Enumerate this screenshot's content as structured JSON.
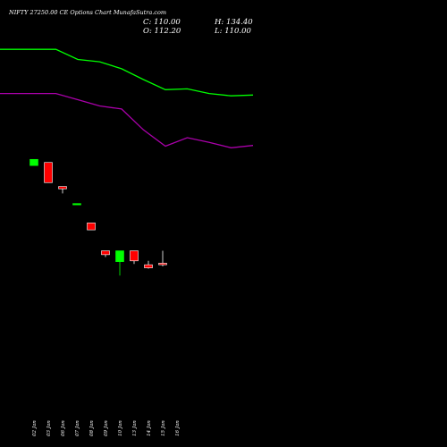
{
  "chart_data": {
    "type": "candlestick",
    "title": "NIFTY 27250.00 CE Options Chart MunafaSutra.com",
    "readout": {
      "close_label": "C: 110.00",
      "high_label": "H: 134.40",
      "open_label": "O: 112.20",
      "low_label": "L: 110.00"
    },
    "x": [
      "02 Jan",
      "03 Jan",
      "06 Jan",
      "07 Jan",
      "08 Jan",
      "09 Jan",
      "10 Jan",
      "13 Jan",
      "14 Jan",
      "15 Jan",
      "16 Jan"
    ],
    "ylim": [
      110,
      560
    ],
    "candles": [
      {
        "open": 404,
        "high": 412,
        "low": 404,
        "close": 412
      },
      {
        "open": 408,
        "high": 408,
        "low": 382,
        "close": 382
      },
      {
        "open": 377,
        "high": 377,
        "low": 368,
        "close": 374
      },
      {
        "open": 355,
        "high": 355,
        "low": 355,
        "close": 355
      },
      {
        "open": 330,
        "high": 330,
        "low": 321,
        "close": 321
      },
      {
        "open": 294,
        "high": 294,
        "low": 286,
        "close": 289
      },
      {
        "open": 280,
        "high": 294,
        "low": 262,
        "close": 294
      },
      {
        "open": 294,
        "high": 294,
        "low": 277,
        "close": 281
      },
      {
        "open": 276,
        "high": 281,
        "low": 271,
        "close": 272
      },
      {
        "open": 278,
        "high": 294,
        "low": 274,
        "close": 276
      },
      {
        "open": null,
        "high": null,
        "low": null,
        "close": null
      }
    ],
    "series": [
      {
        "color": "#00ff00",
        "values": [
          554,
          554,
          541,
          538,
          529,
          515,
          502,
          503,
          497,
          494,
          495
        ]
      },
      {
        "color": "#aa00aa",
        "values": [
          497,
          497,
          489,
          481,
          477,
          450,
          429,
          440,
          434,
          427,
          430
        ]
      }
    ],
    "colors": {
      "up": "#00ff00",
      "down": "#ff0000",
      "background": "#000000",
      "text": "#ffffff"
    }
  }
}
